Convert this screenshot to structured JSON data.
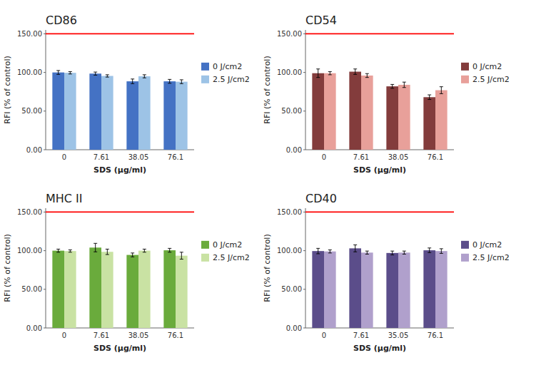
{
  "chart_data": [
    {
      "type": "bar",
      "title": "CD86",
      "xlabel": "SDS (μg/ml)",
      "ylabel": "RFI (% of control)",
      "categories": [
        "0",
        "7.61",
        "38.05",
        "76.1"
      ],
      "series": [
        {
          "name": "0 J/cm2",
          "values": [
            100.0,
            98.5,
            88.5,
            88.5
          ],
          "errors": [
            2.5,
            2.0,
            3.0,
            2.5
          ],
          "color": "#4472C4"
        },
        {
          "name": "2.5 J/cm2",
          "values": [
            99.5,
            95.5,
            95.0,
            88.0
          ],
          "errors": [
            1.5,
            1.5,
            2.0,
            2.5
          ],
          "color": "#9DC3E6"
        }
      ],
      "ylim": [
        0,
        155
      ],
      "yticks": [
        {
          "value": 0,
          "label": "0.00"
        },
        {
          "value": 50,
          "label": "50.00"
        },
        {
          "value": 100,
          "label": "100.00"
        },
        {
          "value": 150,
          "label": "150.00"
        }
      ],
      "hline": {
        "value": 150,
        "color": "#FF0000"
      },
      "grid": false,
      "legend": "right"
    },
    {
      "type": "bar",
      "title": "CD54",
      "xlabel": "SDS (μg/ml)",
      "ylabel": "RFI (% of control)",
      "categories": [
        "0",
        "7.61",
        "38.05",
        "76.1"
      ],
      "series": [
        {
          "name": "0 J/cm2",
          "values": [
            99.0,
            101.0,
            82.0,
            68.0
          ],
          "errors": [
            5.5,
            3.5,
            2.5,
            3.0
          ],
          "color": "#833C3C"
        },
        {
          "name": "2.5 J/cm2",
          "values": [
            99.0,
            96.0,
            84.0,
            77.0
          ],
          "errors": [
            2.0,
            2.5,
            3.5,
            4.5
          ],
          "color": "#E8A09A"
        }
      ],
      "ylim": [
        0,
        155
      ],
      "yticks": [
        {
          "value": 0,
          "label": "0.00"
        },
        {
          "value": 50,
          "label": "50.00"
        },
        {
          "value": 100,
          "label": "100.00"
        },
        {
          "value": 150,
          "label": "150.00"
        }
      ],
      "hline": {
        "value": 150,
        "color": "#FF0000"
      },
      "grid": false,
      "legend": "right"
    },
    {
      "type": "bar",
      "title": "MHC  II",
      "xlabel": "SDS (μg/ml)",
      "ylabel": "RFI (% of control)",
      "categories": [
        "0",
        "7.61",
        "38.05",
        "76.1"
      ],
      "series": [
        {
          "name": "0 J/cm2",
          "values": [
            100.0,
            104.0,
            94.5,
            100.5
          ],
          "errors": [
            2.0,
            5.5,
            2.5,
            2.5
          ],
          "color": "#6AAB3C"
        },
        {
          "name": "2.5 J/cm2",
          "values": [
            99.5,
            98.5,
            100.0,
            93.5
          ],
          "errors": [
            1.5,
            3.5,
            2.0,
            4.5
          ],
          "color": "#C9E2A3"
        }
      ],
      "ylim": [
        0,
        155
      ],
      "yticks": [
        {
          "value": 0,
          "label": "0.00"
        },
        {
          "value": 50,
          "label": "50.00"
        },
        {
          "value": 100,
          "label": "100.00"
        },
        {
          "value": 150,
          "label": "150.00"
        }
      ],
      "hline": {
        "value": 150,
        "color": "#FF0000"
      },
      "grid": false,
      "legend": "right"
    },
    {
      "type": "bar",
      "title": "CD40",
      "xlabel": "SDS (μg/ml)",
      "ylabel": "RFI (% of control)",
      "categories": [
        "0",
        "7.61",
        "35.05",
        "76.1"
      ],
      "series": [
        {
          "name": "0 J/cm2",
          "values": [
            99.5,
            103.0,
            97.0,
            100.5
          ],
          "errors": [
            3.5,
            4.5,
            2.5,
            3.0
          ],
          "color": "#5B4D8A"
        },
        {
          "name": "2.5 J/cm2",
          "values": [
            99.0,
            97.5,
            97.5,
            99.5
          ],
          "errors": [
            2.0,
            2.0,
            2.0,
            3.0
          ],
          "color": "#B0A0CC"
        }
      ],
      "ylim": [
        0,
        155
      ],
      "yticks": [
        {
          "value": 0,
          "label": "0.00"
        },
        {
          "value": 50,
          "label": "50.00"
        },
        {
          "value": 100,
          "label": "100.00"
        },
        {
          "value": 150,
          "label": "150.00"
        }
      ],
      "hline": {
        "value": 150,
        "color": "#FF0000"
      },
      "grid": false,
      "legend": "right"
    }
  ]
}
